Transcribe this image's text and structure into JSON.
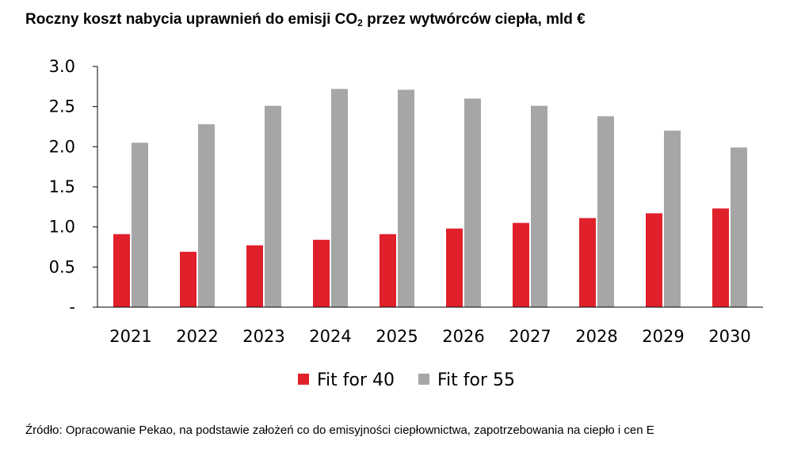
{
  "title_main": "Roczny koszt nabycia uprawnień do emisji CO",
  "title_sub": "2",
  "title_rest": " przez wytwórców ciepła, mld €",
  "source": "Źródło: Opracowanie Pekao, na podstawie założeń co do emisyjności ciepłownictwa, zapotrzebowania na ciepło i cen E",
  "colors": {
    "fit40": "#e0202a",
    "fit55": "#a6a6a6",
    "axis": "#000000"
  },
  "chart_data": {
    "type": "bar",
    "title": "Roczny koszt nabycia uprawnień do emisji CO2 przez wytwórców ciepła, mld €",
    "categories": [
      "2021",
      "2022",
      "2023",
      "2024",
      "2025",
      "2026",
      "2027",
      "2028",
      "2029",
      "2030"
    ],
    "series": [
      {
        "name": "Fit for 40",
        "values": [
          0.91,
          0.69,
          0.77,
          0.84,
          0.91,
          0.98,
          1.05,
          1.11,
          1.17,
          1.23
        ]
      },
      {
        "name": "Fit for 55",
        "values": [
          2.05,
          2.28,
          2.51,
          2.72,
          2.71,
          2.6,
          2.51,
          2.38,
          2.2,
          1.99
        ]
      }
    ],
    "ylim": [
      0,
      3.0
    ],
    "yticks": [
      "-",
      "0.5",
      "1.0",
      "1.5",
      "2.0",
      "2.5",
      "3.0"
    ],
    "legend": "bottom",
    "grid": false
  }
}
